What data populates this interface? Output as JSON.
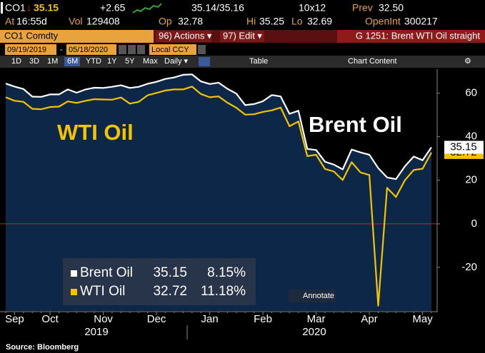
{
  "header": {
    "ticker": "CO1",
    "last_direction": "↓",
    "last": "35.15",
    "change": "+2.65",
    "bid_ask": "35.14/35.16",
    "size": "10x12",
    "prev_label": "Prev",
    "prev": "32.50",
    "time_label": "At",
    "time": "16:55d",
    "vol_label": "Vol",
    "vol": "129408",
    "open_label": "Op",
    "open": "32.78",
    "high_label": "Hi",
    "high": "35.25",
    "low_label": "Lo",
    "low": "32.69",
    "oi_label": "OpenInt",
    "oi": "300217"
  },
  "menu": {
    "security": "CO1 Comdty",
    "actions": "96) Actions ▾",
    "edit": "97) Edit ▾",
    "page": "G 1251: Brent WTI Oil straight"
  },
  "range": {
    "start": "09/19/2019",
    "separator": "-",
    "end": "05/18/2020",
    "currency": "Local CCY"
  },
  "toolbar": {
    "periods": [
      "1D",
      "3D",
      "1M",
      "6M",
      "YTD",
      "1Y",
      "5Y",
      "Max"
    ],
    "selected_period": 3,
    "frequency": "Daily ▾",
    "table": "Table",
    "chart_content": "Chart Content"
  },
  "annotate": "Annotate",
  "source": "Source: Bloomberg",
  "chart_data": {
    "type": "line",
    "categories": [
      null,
      "Sep",
      null,
      null,
      null,
      "Oct",
      null,
      null,
      null,
      null,
      null,
      "Nov",
      null,
      null,
      null,
      null,
      null,
      "Dec",
      null,
      null,
      null,
      null,
      null,
      "Jan",
      null,
      null,
      null,
      null,
      null,
      "Feb",
      null,
      null,
      null,
      null,
      null,
      "Mar",
      null,
      null,
      null,
      null,
      null,
      "Apr",
      null,
      null,
      null,
      null,
      null,
      "May",
      null
    ],
    "x_group_labels": [
      "2019",
      "2020"
    ],
    "series": [
      {
        "name": "Brent Oil",
        "color": "#ffffff",
        "fill": "#0c2747",
        "change_label": "8.15%",
        "values": [
          64.4,
          63,
          61.9,
          58.4,
          58.3,
          59.4,
          59.4,
          61.7,
          60.2,
          61.7,
          62.5,
          62.4,
          62.9,
          63.6,
          62.4,
          62.9,
          64.3,
          65.2,
          66.5,
          67.2,
          68.4,
          68.6,
          65.4,
          64.2,
          64.8,
          62,
          59.8,
          54.5,
          55,
          56.3,
          59.1,
          58.5,
          50.5,
          51.9,
          34.4,
          33.9,
          28.5,
          27.2,
          25,
          34.1,
          32.8,
          31.7,
          25.6,
          21.3,
          20.5,
          26.4,
          30.9,
          29.2,
          35.15
        ]
      },
      {
        "name": "WTI Oil",
        "color": "#f5c400",
        "change_label": "11.18%",
        "values": [
          58.1,
          56.5,
          56,
          52.8,
          52.6,
          53.6,
          53.8,
          56.2,
          55.5,
          56.5,
          57.2,
          57.1,
          57,
          58,
          55.2,
          56,
          59,
          60.1,
          61.2,
          61.7,
          61.7,
          63,
          59.6,
          58.1,
          58.5,
          55.6,
          53.3,
          50.1,
          50.3,
          51.4,
          52.1,
          53.4,
          44.8,
          47,
          31.1,
          31.7,
          25.2,
          24,
          20.1,
          28.3,
          23.6,
          22.4,
          -37.6,
          16.5,
          12.3,
          20,
          24.7,
          25.3,
          32.72
        ]
      }
    ],
    "annotations": [
      {
        "text": "WTI Oil",
        "color": "#f5c400"
      },
      {
        "text": "Brent Oil",
        "color": "#ffffff"
      }
    ],
    "ylim": [
      -40,
      71
    ],
    "yticks": [
      -20,
      0,
      20,
      40,
      60
    ],
    "y_axis_side": "right",
    "zero_line": true,
    "zero_line_color": "#c0282d",
    "grid": false
  }
}
